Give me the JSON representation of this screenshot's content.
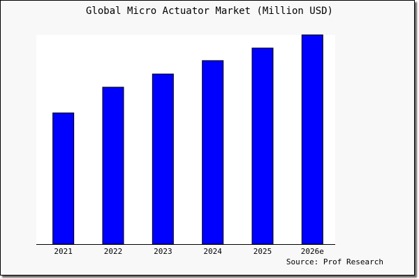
{
  "chart_data": {
    "type": "bar",
    "title": "Global Micro Actuator Market (Million USD)",
    "xlabel": "",
    "ylabel": "",
    "categories": [
      "2021",
      "2022",
      "2023",
      "2024",
      "2025",
      "2026e"
    ],
    "values": [
      62.7,
      75.0,
      81.3,
      87.7,
      93.7,
      100
    ],
    "ylim": [
      0,
      100
    ],
    "grid": false,
    "bar_color": "#0000ff",
    "bar_edge_color": "#000000",
    "plot_background": "#ffffff",
    "source": "Source: Prof Research"
  }
}
